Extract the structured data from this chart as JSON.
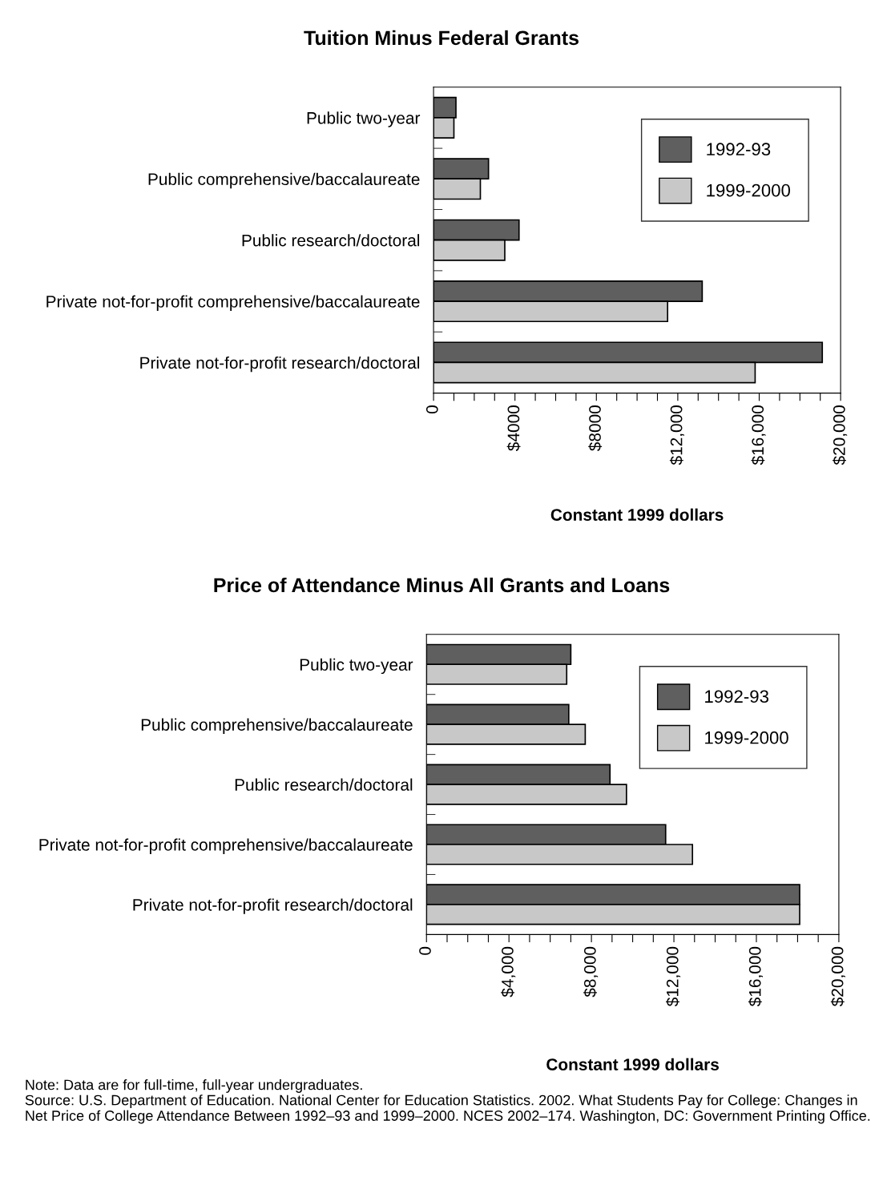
{
  "chart_data": [
    {
      "type": "bar",
      "orientation": "horizontal",
      "title": "Tuition Minus Federal Grants",
      "xlabel": "Constant 1999 dollars",
      "categories": [
        "Public two-year",
        "Public comprehensive/baccalaureate",
        "Public research/doctoral",
        "Private not-for-profit comprehensive/baccalaureate",
        "Private not-for-profit research/doctoral"
      ],
      "series": [
        {
          "name": "1992-93",
          "color": "#5f5f5f",
          "values": [
            1100,
            2700,
            4200,
            13200,
            19100
          ]
        },
        {
          "name": "1999-2000",
          "color": "#c8c8c8",
          "values": [
            1000,
            2300,
            3500,
            11500,
            15800
          ]
        }
      ],
      "xlim": [
        0,
        20000
      ],
      "xticks": [
        0,
        {
          "value": 1000,
          "label": null
        },
        {
          "value": 2000,
          "label": null
        },
        {
          "value": 3000,
          "label": null
        },
        {
          "value": 4000,
          "label": "$4000"
        },
        {
          "value": 5000,
          "label": null
        },
        {
          "value": 6000,
          "label": null
        },
        {
          "value": 7000,
          "label": null
        },
        {
          "value": 8000,
          "label": "$8000"
        },
        {
          "value": 9000,
          "label": null
        },
        {
          "value": 10000,
          "label": null
        },
        {
          "value": 11000,
          "label": null
        },
        {
          "value": 12000,
          "label": "$12,000"
        },
        {
          "value": 13000,
          "label": null
        },
        {
          "value": 14000,
          "label": null
        },
        {
          "value": 15000,
          "label": null
        },
        {
          "value": 16000,
          "label": "$16,000"
        },
        {
          "value": 17000,
          "label": null
        },
        {
          "value": 18000,
          "label": null
        },
        {
          "value": 19000,
          "label": null
        },
        {
          "value": 20000,
          "label": "$20,000"
        }
      ],
      "legend": "top right",
      "grid": false
    },
    {
      "type": "bar",
      "orientation": "horizontal",
      "title": "Price of Attendance Minus All Grants and Loans",
      "xlabel": "Constant 1999 dollars",
      "categories": [
        "Public two-year",
        "Public comprehensive/baccalaureate",
        "Public research/doctoral",
        "Private not-for-profit comprehensive/baccalaureate",
        "Private not-for-profit research/doctoral"
      ],
      "series": [
        {
          "name": "1992-93",
          "color": "#5f5f5f",
          "values": [
            7000,
            6900,
            8900,
            11600,
            18100
          ]
        },
        {
          "name": "1999-2000",
          "color": "#c8c8c8",
          "values": [
            6800,
            7700,
            9700,
            12900,
            18100
          ]
        }
      ],
      "xlim": [
        0,
        20000
      ],
      "xticks": [
        0,
        {
          "value": 1000,
          "label": null
        },
        {
          "value": 2000,
          "label": null
        },
        {
          "value": 3000,
          "label": null
        },
        {
          "value": 4000,
          "label": "$4,000"
        },
        {
          "value": 5000,
          "label": null
        },
        {
          "value": 6000,
          "label": null
        },
        {
          "value": 7000,
          "label": null
        },
        {
          "value": 8000,
          "label": "$8,000"
        },
        {
          "value": 9000,
          "label": null
        },
        {
          "value": 10000,
          "label": null
        },
        {
          "value": 11000,
          "label": null
        },
        {
          "value": 12000,
          "label": "$12,000"
        },
        {
          "value": 13000,
          "label": null
        },
        {
          "value": 14000,
          "label": null
        },
        {
          "value": 15000,
          "label": null
        },
        {
          "value": 16000,
          "label": "$16,000"
        },
        {
          "value": 17000,
          "label": null
        },
        {
          "value": 18000,
          "label": null
        },
        {
          "value": 19000,
          "label": null
        },
        {
          "value": 20000,
          "label": "$20,000"
        }
      ],
      "legend": "top right",
      "grid": false,
      "annotations": [
        "Note: Data are for full-time, full-year undergraduates.",
        "Source: U.S. Department of Education. National Center for Education Statistics. 2002. What Students Pay for College: Changes in Net Price of College Attendance Between 1992–93 and 1999–2000. NCES 2002–174. Washington, DC: Government Printing Office."
      ]
    }
  ]
}
